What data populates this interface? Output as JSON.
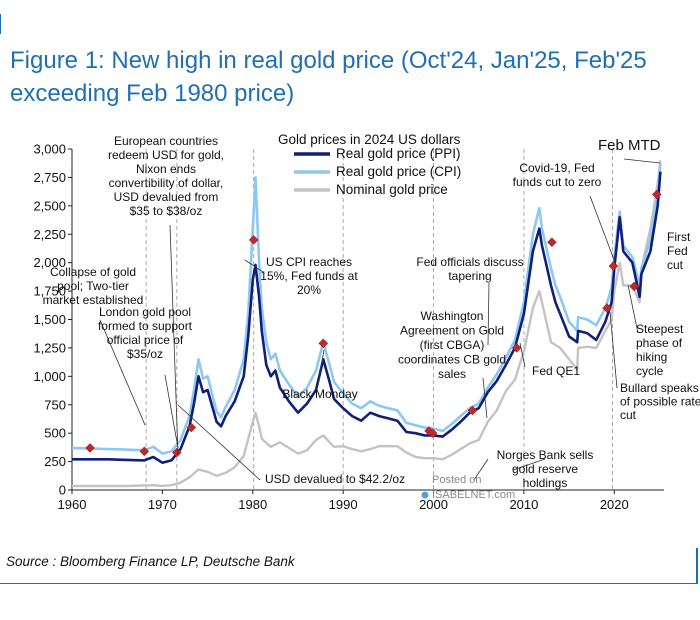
{
  "title": "Figure 1: New high in real gold price (Oct'24, Jan'25, Feb'25 exceeding Feb 1980 price)",
  "source": "Source : Bloomberg Finance LP, Deutsche Bank",
  "watermark": {
    "line1": "Posted on",
    "line2": "ISABELNET.com"
  },
  "colors": {
    "ppi": "#0f1f7a",
    "cpi": "#8ec7f2",
    "nominal": "#c3c3c3",
    "marker": "#c0282d",
    "accent": "#1f6fb6",
    "vline": "#a8a8a8"
  },
  "chart_data": {
    "type": "line",
    "legend_title": "Gold prices in 2024 US dollars",
    "legend_placement": "top-center",
    "xlim": [
      1960,
      2025.5
    ],
    "ylim": [
      0,
      3000
    ],
    "x_ticks": [
      "1960",
      "1970",
      "1980",
      "1990",
      "2000",
      "2010",
      "2020"
    ],
    "y_ticks": [
      "0",
      "250",
      "500",
      "750",
      "1,000",
      "1,250",
      "1,500",
      "1,750",
      "2,000",
      "2,250",
      "2,500",
      "2,750",
      "3,000"
    ],
    "vertical_lines_x": [
      1968.2,
      1971.6,
      1980.1,
      1990.0,
      2000.0,
      2010.0,
      2019.8
    ],
    "series": [
      {
        "name": "Real gold price (PPI)",
        "color": "#0f1f7a",
        "x": [
          1960,
          1962,
          1964,
          1966,
          1968,
          1969,
          1970,
          1971,
          1972,
          1973,
          1973.5,
          1974,
          1974.5,
          1975,
          1976,
          1976.5,
          1977,
          1978,
          1979,
          1979.5,
          1980,
          1980.3,
          1980.7,
          1981,
          1981.5,
          1982,
          1982.5,
          1983,
          1984,
          1985,
          1986,
          1987,
          1987.8,
          1988.5,
          1989,
          1990,
          1991,
          1992,
          1993,
          1994,
          1995,
          1996,
          1997,
          1998,
          1999,
          2000,
          2001,
          2002,
          2003,
          2004,
          2005,
          2006,
          2007,
          2008,
          2009,
          2010,
          2011,
          2011.7,
          2012,
          2013,
          2013.5,
          2014,
          2015,
          2015.9,
          2016,
          2017,
          2018,
          2019,
          2019.7,
          2020,
          2020.6,
          2021,
          2022,
          2022.8,
          2023,
          2024,
          2024.8,
          2025.1
        ],
        "values": [
          270,
          270,
          270,
          265,
          260,
          290,
          240,
          260,
          360,
          560,
          760,
          1000,
          860,
          880,
          600,
          560,
          650,
          780,
          1000,
          1350,
          1850,
          1980,
          1700,
          1400,
          1100,
          1000,
          1050,
          900,
          780,
          680,
          760,
          880,
          1150,
          950,
          800,
          720,
          650,
          610,
          680,
          650,
          630,
          610,
          510,
          500,
          480,
          480,
          470,
          530,
          600,
          680,
          720,
          860,
          960,
          1100,
          1250,
          1550,
          2100,
          2300,
          2150,
          1800,
          1650,
          1550,
          1350,
          1300,
          1400,
          1380,
          1320,
          1480,
          1650,
          1950,
          2400,
          2100,
          2000,
          1700,
          1900,
          2100,
          2500,
          2800
        ]
      },
      {
        "name": "Real gold price (CPI)",
        "color": "#8ec7f2",
        "x": [
          1960,
          1962,
          1964,
          1966,
          1968,
          1969,
          1970,
          1971,
          1972,
          1973,
          1973.5,
          1974,
          1974.5,
          1975,
          1976,
          1976.5,
          1977,
          1978,
          1979,
          1979.5,
          1980,
          1980.3,
          1980.7,
          1981,
          1981.5,
          1982,
          1982.5,
          1983,
          1984,
          1985,
          1986,
          1987,
          1987.8,
          1988.5,
          1989,
          1990,
          1991,
          1992,
          1993,
          1994,
          1995,
          1996,
          1997,
          1998,
          1999,
          2000,
          2001,
          2002,
          2003,
          2004,
          2005,
          2006,
          2007,
          2008,
          2009,
          2010,
          2011,
          2011.7,
          2012,
          2013,
          2013.5,
          2014,
          2015,
          2015.9,
          2016,
          2017,
          2018,
          2019,
          2019.7,
          2020,
          2020.6,
          2021,
          2022,
          2022.8,
          2023,
          2024,
          2024.8,
          2025.1
        ],
        "values": [
          370,
          365,
          360,
          355,
          350,
          380,
          320,
          340,
          440,
          650,
          880,
          1150,
          980,
          1000,
          690,
          640,
          730,
          880,
          1150,
          1550,
          2300,
          2750,
          2000,
          1600,
          1300,
          1150,
          1200,
          1050,
          930,
          820,
          900,
          1050,
          1300,
          1100,
          950,
          850,
          760,
          720,
          780,
          740,
          720,
          700,
          590,
          570,
          550,
          540,
          520,
          580,
          650,
          720,
          760,
          900,
          1020,
          1160,
          1320,
          1650,
          2250,
          2480,
          2300,
          1950,
          1800,
          1700,
          1480,
          1400,
          1520,
          1500,
          1450,
          1600,
          1780,
          2050,
          2450,
          2150,
          2050,
          1800,
          1950,
          2200,
          2600,
          2870
        ]
      },
      {
        "name": "Nominal gold price",
        "color": "#c3c3c3",
        "x": [
          1960,
          1962,
          1964,
          1966,
          1968,
          1969,
          1970,
          1971,
          1972,
          1973,
          1974,
          1975,
          1976,
          1977,
          1978,
          1979,
          1979.5,
          1980,
          1980.3,
          1980.7,
          1981,
          1982,
          1983,
          1984,
          1985,
          1986,
          1987,
          1987.8,
          1988.5,
          1989,
          1990,
          1991,
          1992,
          1993,
          1994,
          1995,
          1996,
          1997,
          1998,
          1999,
          2000,
          2001,
          2002,
          2003,
          2004,
          2005,
          2006,
          2007,
          2008,
          2009,
          2010,
          2011,
          2011.7,
          2012,
          2013,
          2014,
          2015,
          2015.9,
          2016,
          2017,
          2018,
          2019,
          2019.7,
          2020,
          2020.6,
          2021,
          2022,
          2022.8,
          2023,
          2024,
          2024.8,
          2025.1
        ],
        "values": [
          35,
          35,
          35,
          35,
          40,
          42,
          36,
          42,
          64,
          112,
          180,
          160,
          125,
          150,
          200,
          300,
          450,
          600,
          680,
          560,
          450,
          380,
          420,
          370,
          320,
          350,
          440,
          480,
          420,
          380,
          385,
          360,
          340,
          360,
          385,
          385,
          385,
          330,
          290,
          280,
          280,
          270,
          310,
          360,
          410,
          440,
          600,
          700,
          870,
          970,
          1220,
          1600,
          1750,
          1650,
          1300,
          1250,
          1150,
          1060,
          1250,
          1260,
          1250,
          1400,
          1500,
          1750,
          2000,
          1800,
          1800,
          1650,
          1950,
          2300,
          2700,
          2900
        ]
      }
    ],
    "markers": [
      {
        "x": 1962,
        "y": 370
      },
      {
        "x": 1968,
        "y": 340
      },
      {
        "x": 1971.6,
        "y": 330
      },
      {
        "x": 1973.2,
        "y": 550
      },
      {
        "x": 1980.1,
        "y": 2200
      },
      {
        "x": 1987.8,
        "y": 1290
      },
      {
        "x": 1999.5,
        "y": 520
      },
      {
        "x": 1999.9,
        "y": 500
      },
      {
        "x": 2004.3,
        "y": 700
      },
      {
        "x": 2009.2,
        "y": 1250
      },
      {
        "x": 2013.1,
        "y": 2180
      },
      {
        "x": 2019.2,
        "y": 1600
      },
      {
        "x": 2019.9,
        "y": 1970
      },
      {
        "x": 2022.2,
        "y": 1790
      },
      {
        "x": 2024.7,
        "y": 2600
      }
    ],
    "annotations": [
      {
        "lines": [
          "European countries",
          "redeem USD for gold,",
          "Nixon ends",
          "convertibility of dollar,",
          "USD devalued from",
          "$35 to $38/oz"
        ]
      },
      {
        "lines": [
          "Collapse of gold",
          "pool; Two-tier",
          "market established"
        ]
      },
      {
        "lines": [
          "London gold pool",
          "formed to support",
          "official price of",
          "$35/oz"
        ]
      },
      {
        "lines": [
          "US CPI reaches",
          "15%, Fed funds at",
          "20%"
        ]
      },
      {
        "lines": [
          "Black Monday"
        ]
      },
      {
        "lines": [
          "USD devalued to $42.2/oz"
        ]
      },
      {
        "lines": [
          "Washington",
          "Agreement on Gold",
          "(first CBGA)",
          "coordinates CB gold",
          "sales"
        ]
      },
      {
        "lines": [
          "Fed officials discuss",
          "tapering"
        ]
      },
      {
        "lines": [
          "Covid-19, Fed",
          "funds cut to zero"
        ]
      },
      {
        "lines": [
          "Feb MTD"
        ]
      },
      {
        "lines": [
          "First",
          "Fed",
          "cut"
        ]
      },
      {
        "lines": [
          "Steepest",
          "phase of",
          "hiking",
          "cycle"
        ]
      },
      {
        "lines": [
          "Fed QE1"
        ]
      },
      {
        "lines": [
          "Bullard speaks",
          "of possible rate",
          "cut"
        ]
      },
      {
        "lines": [
          "Norges Bank sells",
          "gold reserve",
          "holdings"
        ]
      }
    ]
  }
}
